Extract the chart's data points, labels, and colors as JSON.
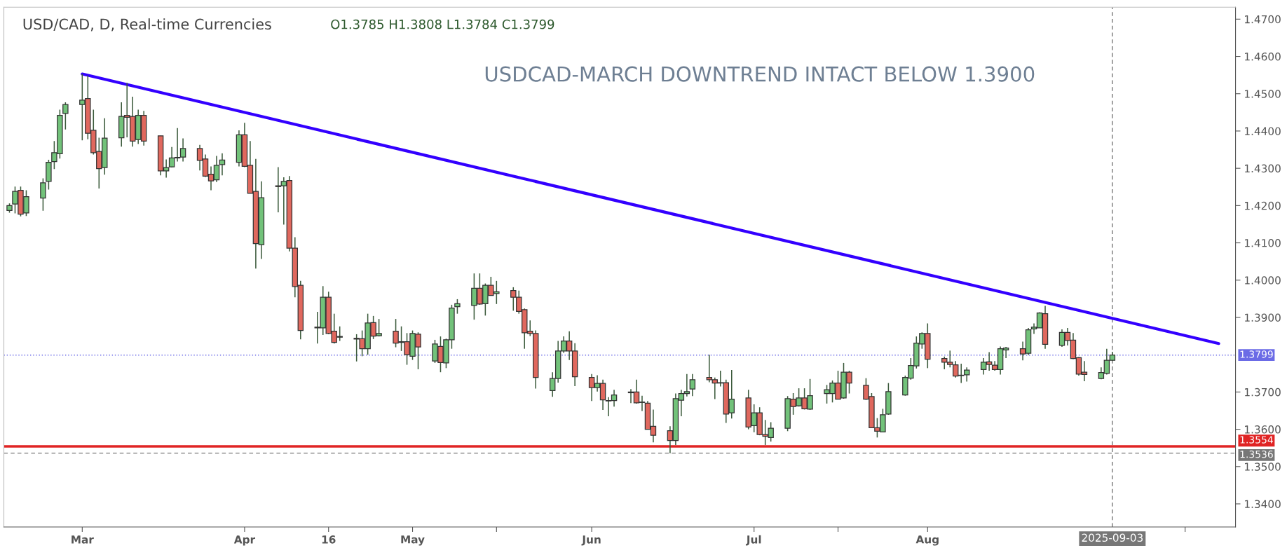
{
  "chart_data": {
    "type": "candlestick",
    "title": "USD/CAD, D, Real-time Currencies",
    "subtitle": "O1.3785 H1.3808 L1.3784 C1.3799",
    "annotations": [
      "USDCAD-MARCH DOWNTREND INTACT BELOW 1.3900"
    ],
    "x": [
      "2025-02-18",
      "2025-02-19",
      "2025-02-20",
      "2025-02-21",
      "2025-02-24",
      "2025-02-25",
      "2025-02-26",
      "2025-02-27",
      "2025-02-28",
      "2025-03-03",
      "2025-03-04",
      "2025-03-05",
      "2025-03-06",
      "2025-03-07",
      "2025-03-10",
      "2025-03-11",
      "2025-03-12",
      "2025-03-13",
      "2025-03-14",
      "2025-03-17",
      "2025-03-18",
      "2025-03-19",
      "2025-03-20",
      "2025-03-21",
      "2025-03-24",
      "2025-03-25",
      "2025-03-26",
      "2025-03-27",
      "2025-03-28",
      "2025-03-31",
      "2025-04-01",
      "2025-04-02",
      "2025-04-03",
      "2025-04-04",
      "2025-04-07",
      "2025-04-08",
      "2025-04-09",
      "2025-04-10",
      "2025-04-11",
      "2025-04-14",
      "2025-04-15",
      "2025-04-16",
      "2025-04-17",
      "2025-04-18",
      "2025-04-21",
      "2025-04-22",
      "2025-04-23",
      "2025-04-24",
      "2025-04-25",
      "2025-04-28",
      "2025-04-29",
      "2025-04-30",
      "2025-05-01",
      "2025-05-02",
      "2025-05-05",
      "2025-05-06",
      "2025-05-07",
      "2025-05-08",
      "2025-05-09",
      "2025-05-12",
      "2025-05-13",
      "2025-05-14",
      "2025-05-15",
      "2025-05-16",
      "2025-05-19",
      "2025-05-20",
      "2025-05-21",
      "2025-05-22",
      "2025-05-23",
      "2025-05-26",
      "2025-05-27",
      "2025-05-28",
      "2025-05-29",
      "2025-05-30",
      "2025-06-02",
      "2025-06-03",
      "2025-06-04",
      "2025-06-05",
      "2025-06-06",
      "2025-06-09",
      "2025-06-10",
      "2025-06-11",
      "2025-06-12",
      "2025-06-13",
      "2025-06-16",
      "2025-06-17",
      "2025-06-18",
      "2025-06-19",
      "2025-06-20",
      "2025-06-23",
      "2025-06-24",
      "2025-06-25",
      "2025-06-26",
      "2025-06-27",
      "2025-06-30",
      "2025-07-01",
      "2025-07-02",
      "2025-07-03",
      "2025-07-04",
      "2025-07-07",
      "2025-07-08",
      "2025-07-09",
      "2025-07-10",
      "2025-07-11",
      "2025-07-14",
      "2025-07-15",
      "2025-07-16",
      "2025-07-17",
      "2025-07-18",
      "2025-07-21",
      "2025-07-22",
      "2025-07-23",
      "2025-07-24",
      "2025-07-25",
      "2025-07-28",
      "2025-07-29",
      "2025-07-30",
      "2025-07-31",
      "2025-08-01",
      "2025-08-04",
      "2025-08-05",
      "2025-08-06",
      "2025-08-07",
      "2025-08-08",
      "2025-08-11",
      "2025-08-12",
      "2025-08-13",
      "2025-08-14",
      "2025-08-15",
      "2025-08-18",
      "2025-08-19",
      "2025-08-20",
      "2025-08-21",
      "2025-08-22",
      "2025-08-25",
      "2025-08-26",
      "2025-08-27",
      "2025-08-28",
      "2025-08-29",
      "2025-09-01",
      "2025-09-02",
      "2025-09-03"
    ],
    "ohlc": [
      [
        1.4187,
        1.4206,
        1.4181,
        1.42
      ],
      [
        1.4204,
        1.4251,
        1.4179,
        1.4238
      ],
      [
        1.4241,
        1.4251,
        1.4171,
        1.4177
      ],
      [
        1.418,
        1.4241,
        1.4172,
        1.4224
      ],
      [
        1.422,
        1.4273,
        1.4186,
        1.4261
      ],
      [
        1.4265,
        1.4323,
        1.4243,
        1.4316
      ],
      [
        1.4318,
        1.4373,
        1.4298,
        1.4342
      ],
      [
        1.4339,
        1.4457,
        1.4326,
        1.4442
      ],
      [
        1.4447,
        1.4477,
        1.4404,
        1.4471
      ],
      [
        1.4471,
        1.4553,
        1.4375,
        1.4483
      ],
      [
        1.4487,
        1.4549,
        1.4378,
        1.4394
      ],
      [
        1.4402,
        1.4457,
        1.4337,
        1.4342
      ],
      [
        1.4345,
        1.4382,
        1.4246,
        1.4299
      ],
      [
        1.4302,
        1.4434,
        1.4283,
        1.4381
      ],
      [
        1.4382,
        1.4477,
        1.4358,
        1.4439
      ],
      [
        1.4442,
        1.4529,
        1.4383,
        1.4437
      ],
      [
        1.4439,
        1.4492,
        1.4358,
        1.4373
      ],
      [
        1.4377,
        1.4457,
        1.4365,
        1.4442
      ],
      [
        1.4442,
        1.4454,
        1.4361,
        1.4373
      ],
      [
        1.4387,
        1.4387,
        1.4281,
        1.4293
      ],
      [
        1.4293,
        1.4324,
        1.4275,
        1.4302
      ],
      [
        1.4304,
        1.4357,
        1.4302,
        1.4328
      ],
      [
        1.4329,
        1.4408,
        1.4318,
        1.4328
      ],
      [
        1.433,
        1.438,
        1.4318,
        1.4353
      ],
      [
        1.4353,
        1.4363,
        1.4294,
        1.4321
      ],
      [
        1.4325,
        1.4337,
        1.4277,
        1.4279
      ],
      [
        1.4284,
        1.4305,
        1.4241,
        1.4266
      ],
      [
        1.4269,
        1.4333,
        1.4263,
        1.4308
      ],
      [
        1.431,
        1.434,
        1.4281,
        1.4322
      ],
      [
        1.4316,
        1.4402,
        1.4305,
        1.439
      ],
      [
        1.439,
        1.4422,
        1.4303,
        1.4305
      ],
      [
        1.4308,
        1.4373,
        1.4233,
        1.4233
      ],
      [
        1.4238,
        1.4325,
        1.4031,
        1.4098
      ],
      [
        1.4095,
        1.4265,
        1.4057,
        1.4221
      ],
      [
        1.4253,
        1.4303,
        1.4182,
        1.4251
      ],
      [
        1.4253,
        1.4276,
        1.4149,
        1.4265
      ],
      [
        1.4267,
        1.4279,
        1.4077,
        1.4086
      ],
      [
        1.4086,
        1.4115,
        1.3954,
        1.3983
      ],
      [
        1.3986,
        1.3998,
        1.3841,
        1.3865
      ],
      [
        1.3872,
        1.3915,
        1.383,
        1.3874
      ],
      [
        1.3872,
        1.3984,
        1.3853,
        1.3954
      ],
      [
        1.3954,
        1.3969,
        1.3855,
        1.3857
      ],
      [
        1.3863,
        1.391,
        1.383,
        1.3833
      ],
      [
        1.3847,
        1.3876,
        1.3837,
        1.3849
      ],
      [
        1.3844,
        1.3855,
        1.3782,
        1.3842
      ],
      [
        1.3843,
        1.3865,
        1.3796,
        1.3816
      ],
      [
        1.3816,
        1.391,
        1.38,
        1.3885
      ],
      [
        1.3886,
        1.3904,
        1.3842,
        1.385
      ],
      [
        1.3851,
        1.3896,
        1.3849,
        1.3857
      ],
      [
        1.3863,
        1.3896,
        1.382,
        1.3831
      ],
      [
        1.3833,
        1.3876,
        1.381,
        1.3835
      ],
      [
        1.3835,
        1.3858,
        1.3773,
        1.38
      ],
      [
        1.3796,
        1.3865,
        1.3786,
        1.3857
      ],
      [
        1.3855,
        1.386,
        1.3761,
        1.3821
      ],
      [
        1.3783,
        1.384,
        1.3778,
        1.3829
      ],
      [
        1.3822,
        1.3849,
        1.3753,
        1.3779
      ],
      [
        1.3778,
        1.3843,
        1.3764,
        1.384
      ],
      [
        1.384,
        1.3934,
        1.3816,
        1.3925
      ],
      [
        1.3929,
        1.3949,
        1.391,
        1.3937
      ],
      [
        1.3932,
        1.4018,
        1.3894,
        1.3978
      ],
      [
        1.3978,
        1.4018,
        1.3934,
        1.3936
      ],
      [
        1.3937,
        1.3991,
        1.3905,
        1.3986
      ],
      [
        1.3986,
        1.4009,
        1.3959,
        1.3959
      ],
      [
        1.3964,
        1.3998,
        1.3936,
        1.3969
      ],
      [
        1.3972,
        1.3981,
        1.3918,
        1.3954
      ],
      [
        1.3954,
        1.3972,
        1.391,
        1.3916
      ],
      [
        1.3921,
        1.3924,
        1.3816,
        1.3859
      ],
      [
        1.3863,
        1.3892,
        1.385,
        1.3857
      ],
      [
        1.3857,
        1.3865,
        1.3709,
        1.3739
      ],
      [
        1.3704,
        1.3753,
        1.3687,
        1.3736
      ],
      [
        1.3736,
        1.3837,
        1.3725,
        1.381
      ],
      [
        1.381,
        1.3849,
        1.3805,
        1.3837
      ],
      [
        1.3837,
        1.3863,
        1.3786,
        1.381
      ],
      [
        1.381,
        1.3831,
        1.3716,
        1.3741
      ],
      [
        1.3739,
        1.3748,
        1.3676,
        1.3712
      ],
      [
        1.3712,
        1.3745,
        1.3701,
        1.3723
      ],
      [
        1.3723,
        1.3733,
        1.3652,
        1.3679
      ],
      [
        1.3676,
        1.3686,
        1.3635,
        1.3677
      ],
      [
        1.3677,
        1.3706,
        1.3661,
        1.3692
      ],
      [
        1.3698,
        1.3708,
        1.367,
        1.37
      ],
      [
        1.37,
        1.3733,
        1.3669,
        1.3671
      ],
      [
        1.3672,
        1.369,
        1.3649,
        1.3673
      ],
      [
        1.367,
        1.3676,
        1.36,
        1.36
      ],
      [
        1.3608,
        1.3653,
        1.3565,
        1.3584
      ],
      [
        1.3596,
        1.3608,
        1.3536,
        1.357
      ],
      [
        1.357,
        1.3696,
        1.3558,
        1.3682
      ],
      [
        1.3678,
        1.3706,
        1.3635,
        1.3696
      ],
      [
        1.3696,
        1.3748,
        1.3688,
        1.3701
      ],
      [
        1.3708,
        1.3748,
        1.3689,
        1.3733
      ],
      [
        1.3739,
        1.38,
        1.3726,
        1.3733
      ],
      [
        1.3733,
        1.3739,
        1.3681,
        1.3724
      ],
      [
        1.3724,
        1.3757,
        1.3715,
        1.3725
      ],
      [
        1.3725,
        1.3733,
        1.3617,
        1.3641
      ],
      [
        1.3644,
        1.3759,
        1.3629,
        1.3681
      ],
      [
        1.3684,
        1.3706,
        1.36,
        1.3606
      ],
      [
        1.361,
        1.3667,
        1.3592,
        1.3644
      ],
      [
        1.3644,
        1.3659,
        1.3584,
        1.3586
      ],
      [
        1.3586,
        1.3625,
        1.3558,
        1.3581
      ],
      [
        1.3578,
        1.3619,
        1.3567,
        1.3603
      ],
      [
        1.3603,
        1.3689,
        1.3595,
        1.3682
      ],
      [
        1.3681,
        1.3697,
        1.3639,
        1.3661
      ],
      [
        1.3663,
        1.371,
        1.3661,
        1.3684
      ],
      [
        1.3684,
        1.371,
        1.3653,
        1.3655
      ],
      [
        1.3654,
        1.3735,
        1.3652,
        1.369
      ],
      [
        1.3696,
        1.3719,
        1.3669,
        1.3706
      ],
      [
        1.3696,
        1.3731,
        1.3672,
        1.3724
      ],
      [
        1.3724,
        1.3757,
        1.3681,
        1.3681
      ],
      [
        1.3684,
        1.3778,
        1.3682,
        1.3753
      ],
      [
        1.3753,
        1.3757,
        1.3696,
        1.3724
      ],
      [
        1.3718,
        1.3737,
        1.3679,
        1.3681
      ],
      [
        1.3688,
        1.3697,
        1.3604,
        1.3604
      ],
      [
        1.3604,
        1.363,
        1.3578,
        1.3595
      ],
      [
        1.3593,
        1.3655,
        1.3593,
        1.3639
      ],
      [
        1.3641,
        1.3724,
        1.3639,
        1.3701
      ],
      [
        1.3692,
        1.3744,
        1.369,
        1.3739
      ],
      [
        1.3737,
        1.3791,
        1.3733,
        1.3771
      ],
      [
        1.377,
        1.3849,
        1.3763,
        1.3831
      ],
      [
        1.3829,
        1.386,
        1.3816,
        1.3857
      ],
      [
        1.3857,
        1.3884,
        1.3764,
        1.3788
      ],
      [
        1.379,
        1.3795,
        1.3761,
        1.378
      ],
      [
        1.378,
        1.3811,
        1.3766,
        1.3774
      ],
      [
        1.3773,
        1.3783,
        1.3739,
        1.3743
      ],
      [
        1.3744,
        1.3776,
        1.3724,
        1.3745
      ],
      [
        1.3746,
        1.3766,
        1.3728,
        1.3759
      ],
      [
        1.376,
        1.3791,
        1.3747,
        1.378
      ],
      [
        1.3781,
        1.3807,
        1.3757,
        1.3774
      ],
      [
        1.3772,
        1.3783,
        1.3757,
        1.376
      ],
      [
        1.376,
        1.3822,
        1.3747,
        1.3816
      ],
      [
        1.3813,
        1.3821,
        1.3791,
        1.3818
      ],
      [
        1.3816,
        1.3835,
        1.3785,
        1.3802
      ],
      [
        1.3804,
        1.3872,
        1.3799,
        1.3867
      ],
      [
        1.3869,
        1.3884,
        1.3856,
        1.3874
      ],
      [
        1.3872,
        1.3914,
        1.3872,
        1.3912
      ],
      [
        1.391,
        1.3931,
        1.3816,
        1.3828
      ],
      [
        1.3825,
        1.3868,
        1.3821,
        1.386
      ],
      [
        1.386,
        1.3872,
        1.3825,
        1.3838
      ],
      [
        1.3839,
        1.3858,
        1.3788,
        1.379
      ],
      [
        1.3792,
        1.3794,
        1.3744,
        1.3748
      ],
      [
        1.3753,
        1.3783,
        1.3729,
        1.3747
      ],
      [
        1.3736,
        1.3766,
        1.3734,
        1.3752
      ],
      [
        1.375,
        1.3816,
        1.3747,
        1.3785
      ],
      [
        1.3785,
        1.3808,
        1.3784,
        1.3799
      ]
    ],
    "series": [
      {
        "type": "line",
        "color": "#3300ff",
        "x": [
          "2025-03-03",
          "2025-09-22"
        ],
        "values": [
          1.4553,
          1.383
        ]
      }
    ],
    "ref_lines": [
      {
        "axis": "y",
        "value": 1.3799,
        "label": "1.3799",
        "color": "#6b6be6",
        "line_style": "dotted"
      },
      {
        "axis": "y",
        "value": 1.3554,
        "label": "1.3554",
        "color": "#e02424",
        "line_style": "solid"
      },
      {
        "axis": "y",
        "value": 1.3536,
        "label": "1.3536",
        "color": "#777777",
        "line_style": "dashed"
      },
      {
        "axis": "x",
        "value": "2025-09-03",
        "label": "2025-09-03",
        "color": "#777777",
        "line_style": "dashed"
      }
    ],
    "xlim": [
      "2025-02-17",
      "2025-09-25"
    ],
    "xticks": [
      {
        "value": "2025-03-03",
        "label": "Mar"
      },
      {
        "value": "2025-04-01",
        "label": "Apr"
      },
      {
        "value": "2025-04-16",
        "label": "16"
      },
      {
        "value": "2025-05-01",
        "label": "May"
      },
      {
        "value": "2025-05-16",
        "label": null
      },
      {
        "value": "2025-06-02",
        "label": "Jun"
      },
      {
        "value": "2025-07-01",
        "label": "Jul"
      },
      {
        "value": "2025-07-16",
        "label": null
      },
      {
        "value": "2025-08-01",
        "label": "Aug"
      },
      {
        "value": "2025-09-16",
        "label": null
      }
    ],
    "ylim": [
      1.3338,
      1.4732
    ],
    "yticks": [
      {
        "value": 1.34,
        "label": "1.3400"
      },
      {
        "value": 1.35,
        "label": "1.3500"
      },
      {
        "value": 1.36,
        "label": "1.3600"
      },
      {
        "value": 1.37,
        "label": "1.3700"
      },
      {
        "value": 1.39,
        "label": "1.3900"
      },
      {
        "value": 1.4,
        "label": "1.4000"
      },
      {
        "value": 1.41,
        "label": "1.4100"
      },
      {
        "value": 1.42,
        "label": "1.4200"
      },
      {
        "value": 1.43,
        "label": "1.4300"
      },
      {
        "value": 1.44,
        "label": "1.4400"
      },
      {
        "value": 1.45,
        "label": "1.4500"
      },
      {
        "value": 1.46,
        "label": "1.4600"
      },
      {
        "value": 1.47,
        "label": "1.4700"
      }
    ],
    "grid": false
  }
}
